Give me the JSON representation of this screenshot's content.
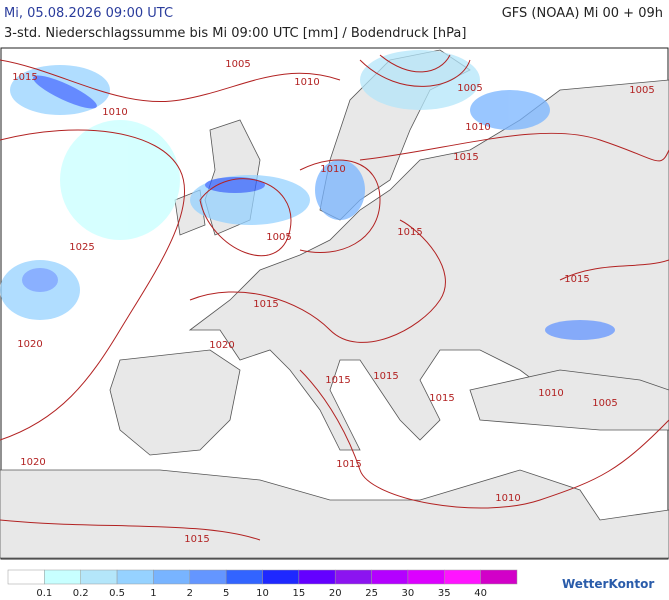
{
  "header": {
    "datetime": "Mi, 05.08.2026 09:00 UTC",
    "subtitle": "3-std. Niederschlagssumme bis Mi 09:00 UTC [mm] / Bodendruck [hPa]",
    "model": "GFS (NOAA) Mi 00 + 09h"
  },
  "isobar_labels": [
    "1015",
    "1010",
    "1005",
    "1010",
    "1005",
    "1005",
    "1010",
    "1015",
    "1010",
    "1025",
    "1005",
    "1015",
    "1015",
    "1015",
    "1020",
    "1020",
    "1015",
    "1015",
    "1010",
    "1015",
    "1005",
    "1020",
    "1015",
    "1010",
    "1015"
  ],
  "legend": {
    "labels": [
      "0.1",
      "0.2",
      "0.5",
      "1",
      "2",
      "5",
      "10",
      "15",
      "20",
      "25",
      "30",
      "35",
      "40"
    ],
    "colors": [
      "#ffffff",
      "#c8ffff",
      "#b4e6fa",
      "#96d2ff",
      "#78b4ff",
      "#6496ff",
      "#3264ff",
      "#1e28ff",
      "#6400ff",
      "#8c14f0",
      "#b400ff",
      "#dc00ff",
      "#ff14ff",
      "#d200c8"
    ]
  },
  "brand": "WetterKontor"
}
